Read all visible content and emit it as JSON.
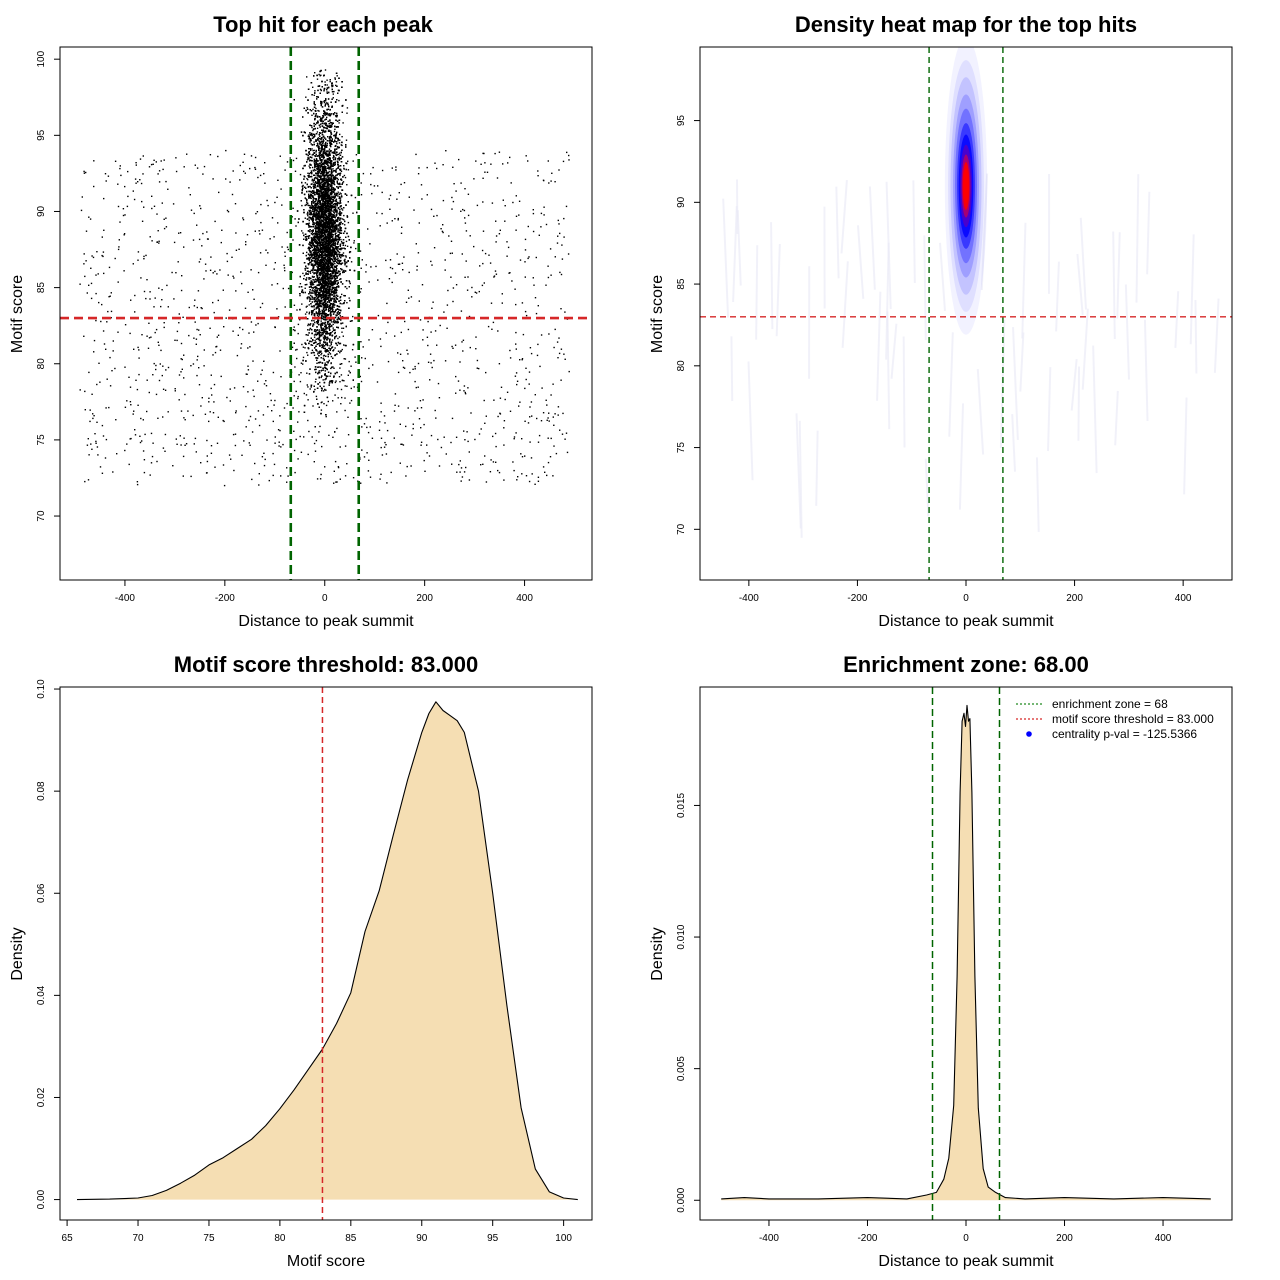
{
  "chart_data": [
    {
      "type": "scatter",
      "title": "Top hit for each peak",
      "xlabel": "Distance to peak summit",
      "ylabel": "Motif score",
      "xlim": [
        -530,
        535
      ],
      "ylim": [
        65.8,
        100.8
      ],
      "xticks": [
        -400,
        -200,
        0,
        200,
        400
      ],
      "yticks": [
        70,
        75,
        80,
        85,
        90,
        95,
        100
      ],
      "grid": false,
      "vlines": [
        {
          "x": -68,
          "color": "#006400"
        },
        {
          "x": 68,
          "color": "#006400"
        }
      ],
      "hlines": [
        {
          "y": 83,
          "color": "#d62728"
        }
      ],
      "point_color": "#000000",
      "clusters": [
        {
          "name": "central",
          "x_center": 0,
          "x_spread": 18,
          "y_center": 88.5,
          "y_spread": 4.2,
          "count": 9000
        },
        {
          "name": "background",
          "x_range": [
            -490,
            490
          ],
          "y_range": [
            72,
            94
          ],
          "count": 1400
        }
      ]
    },
    {
      "type": "heatmap",
      "title": "Density heat map for the top hits",
      "xlabel": "Distance to peak summit",
      "ylabel": "Motif score",
      "xlim": [
        -490,
        490
      ],
      "ylim": [
        66.9,
        99.5
      ],
      "xticks": [
        -400,
        -200,
        0,
        200,
        400
      ],
      "yticks": [
        70,
        75,
        80,
        85,
        90,
        95
      ],
      "grid": false,
      "colormap": [
        "#ffffff",
        "#0000ff",
        "#ff0000"
      ],
      "vlines": [
        {
          "x": -68,
          "color": "#006400"
        },
        {
          "x": 68,
          "color": "#006400"
        }
      ],
      "hlines": [
        {
          "y": 83,
          "color": "#d62728"
        }
      ],
      "hotspot": {
        "x_center": 0,
        "x_spread": 15,
        "y_center": 91,
        "y_spread": 3.5
      }
    },
    {
      "type": "area",
      "title": "Motif score threshold: 83.000",
      "xlabel": "Motif score",
      "ylabel": "Density",
      "xlim": [
        64.5,
        102
      ],
      "ylim": [
        -0.004,
        0.1004
      ],
      "xticks": [
        65,
        70,
        75,
        80,
        85,
        90,
        95,
        100
      ],
      "yticks": [
        0.0,
        0.02,
        0.04,
        0.06,
        0.08,
        0.1
      ],
      "ytick_labels": [
        "0.00",
        "0.02",
        "0.04",
        "0.06",
        "0.08",
        "0.10"
      ],
      "fill": "#f5deb3",
      "vlines": [
        {
          "x": 83,
          "color": "#d62728"
        }
      ],
      "x": [
        65.7,
        68,
        70,
        71,
        72,
        73,
        74,
        75,
        76,
        77,
        78,
        79,
        80,
        81,
        82,
        83,
        84,
        85,
        86,
        87,
        88,
        89,
        90,
        90.5,
        91,
        91.5,
        92,
        92.5,
        93,
        94,
        95,
        96,
        97,
        98,
        99,
        100,
        101
      ],
      "y": [
        0.0,
        0.0001,
        0.0003,
        0.0008,
        0.0018,
        0.0032,
        0.0048,
        0.0068,
        0.0082,
        0.01,
        0.0118,
        0.0145,
        0.0178,
        0.0215,
        0.0255,
        0.0295,
        0.0345,
        0.0405,
        0.0525,
        0.0605,
        0.0715,
        0.0822,
        0.0915,
        0.0952,
        0.0975,
        0.0958,
        0.0948,
        0.0938,
        0.0915,
        0.08,
        0.06,
        0.038,
        0.018,
        0.006,
        0.0015,
        0.0003,
        0.0
      ]
    },
    {
      "type": "area",
      "title": "Enrichment zone: 68.00",
      "xlabel": "Distance to peak summit",
      "ylabel": "Density",
      "xlim": [
        -540,
        540
      ],
      "ylim": [
        -0.00075,
        0.0195
      ],
      "xticks": [
        -400,
        -200,
        0,
        200,
        400
      ],
      "yticks": [
        0.0,
        0.005,
        0.01,
        0.015
      ],
      "ytick_labels": [
        "0.000",
        "0.005",
        "0.010",
        "0.015"
      ],
      "fill": "#f5deb3",
      "vlines": [
        {
          "x": -68,
          "color": "#006400"
        },
        {
          "x": 68,
          "color": "#006400"
        }
      ],
      "x": [
        -497,
        -450,
        -400,
        -300,
        -200,
        -120,
        -80,
        -60,
        -45,
        -35,
        -25,
        -18,
        -12,
        -8,
        -4,
        -1,
        2,
        5,
        8,
        12,
        18,
        25,
        35,
        45,
        60,
        80,
        120,
        200,
        300,
        400,
        497
      ],
      "y": [
        5e-05,
        0.0001,
        5e-05,
        5e-05,
        0.0001,
        5e-05,
        0.0002,
        0.0003,
        0.0008,
        0.0016,
        0.0036,
        0.0085,
        0.0155,
        0.0182,
        0.0185,
        0.018,
        0.0188,
        0.0182,
        0.0183,
        0.0155,
        0.0085,
        0.0035,
        0.0012,
        0.0005,
        0.0003,
        0.0001,
        5e-05,
        0.0001,
        5e-05,
        0.0001,
        5e-05
      ],
      "legend": {
        "placement": "top-right",
        "entries": [
          {
            "label": "enrichment zone = 68",
            "color": "#228b22",
            "style": "dotted-line"
          },
          {
            "label": "motif score threshold = 83.000",
            "color": "#d62728",
            "style": "dotted-line"
          },
          {
            "label": "centrality p-val = -125.5366",
            "color": "#0000ff",
            "style": "point"
          }
        ]
      }
    }
  ]
}
